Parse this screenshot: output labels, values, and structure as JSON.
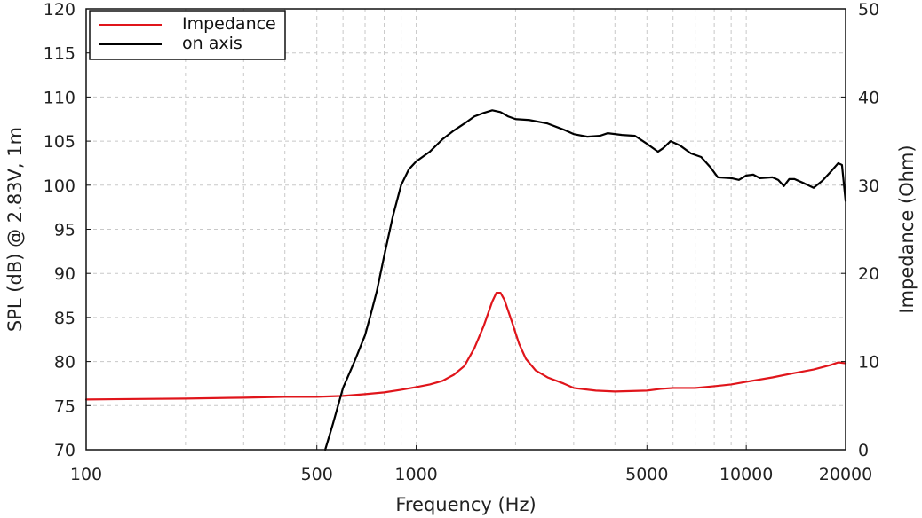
{
  "chart_data": {
    "type": "line",
    "xlabel": "Frequency (Hz)",
    "ylabel": "SPL (dB) @ 2.83V, 1m",
    "y2label": "Impedance (Ohm)",
    "x_scale": "log",
    "xlim": [
      100,
      20000
    ],
    "ylim": [
      70,
      120
    ],
    "y2lim": [
      0,
      50
    ],
    "grid": true,
    "legend_position": "top-left",
    "x_ticks": [
      100,
      500,
      1000,
      5000,
      10000,
      20000
    ],
    "x_tick_labels": [
      "100",
      "500",
      "1000",
      "5000",
      "10000",
      "20000"
    ],
    "x_minor_gridlines": [
      200,
      300,
      400,
      600,
      700,
      800,
      900,
      2000,
      3000,
      4000,
      6000,
      7000,
      8000,
      9000
    ],
    "y_ticks": [
      70,
      75,
      80,
      85,
      90,
      95,
      100,
      105,
      110,
      115,
      120
    ],
    "y_tick_labels": [
      "70",
      "75",
      "80",
      "85",
      "90",
      "95",
      "100",
      "105",
      "110",
      "115",
      "120"
    ],
    "y2_ticks": [
      0,
      10,
      20,
      30,
      40,
      50
    ],
    "y2_tick_labels": [
      "0",
      "10",
      "20",
      "30",
      "40",
      "50"
    ],
    "series": [
      {
        "name": "Impedance",
        "axis": "right",
        "color": "#e0151b",
        "points": [
          [
            100,
            5.7
          ],
          [
            200,
            5.8
          ],
          [
            300,
            5.9
          ],
          [
            400,
            6.0
          ],
          [
            500,
            6.0
          ],
          [
            600,
            6.1
          ],
          [
            700,
            6.3
          ],
          [
            800,
            6.5
          ],
          [
            900,
            6.8
          ],
          [
            1000,
            7.1
          ],
          [
            1100,
            7.4
          ],
          [
            1200,
            7.8
          ],
          [
            1300,
            8.5
          ],
          [
            1400,
            9.5
          ],
          [
            1500,
            11.5
          ],
          [
            1600,
            14.0
          ],
          [
            1700,
            16.8
          ],
          [
            1750,
            17.8
          ],
          [
            1800,
            17.8
          ],
          [
            1850,
            17.0
          ],
          [
            1950,
            14.5
          ],
          [
            2050,
            12.0
          ],
          [
            2150,
            10.3
          ],
          [
            2300,
            9.0
          ],
          [
            2500,
            8.2
          ],
          [
            2800,
            7.5
          ],
          [
            3000,
            7.0
          ],
          [
            3500,
            6.7
          ],
          [
            4000,
            6.6
          ],
          [
            5000,
            6.7
          ],
          [
            5500,
            6.9
          ],
          [
            6000,
            7.0
          ],
          [
            7000,
            7.0
          ],
          [
            8000,
            7.2
          ],
          [
            9000,
            7.4
          ],
          [
            10000,
            7.7
          ],
          [
            12000,
            8.2
          ],
          [
            14000,
            8.7
          ],
          [
            16000,
            9.1
          ],
          [
            18000,
            9.6
          ],
          [
            19000,
            9.9
          ],
          [
            20000,
            9.8
          ]
        ]
      },
      {
        "name": "on axis",
        "axis": "left",
        "color": "#000000",
        "points": [
          [
            530,
            70.0
          ],
          [
            560,
            73.0
          ],
          [
            600,
            77.0
          ],
          [
            650,
            80.0
          ],
          [
            700,
            83.0
          ],
          [
            730,
            85.5
          ],
          [
            760,
            88.0
          ],
          [
            800,
            92.0
          ],
          [
            850,
            96.5
          ],
          [
            900,
            100.0
          ],
          [
            950,
            101.8
          ],
          [
            1000,
            102.7
          ],
          [
            1100,
            103.8
          ],
          [
            1200,
            105.2
          ],
          [
            1300,
            106.2
          ],
          [
            1400,
            107.0
          ],
          [
            1500,
            107.8
          ],
          [
            1600,
            108.2
          ],
          [
            1700,
            108.5
          ],
          [
            1800,
            108.3
          ],
          [
            1900,
            107.8
          ],
          [
            2000,
            107.5
          ],
          [
            2200,
            107.4
          ],
          [
            2500,
            107.0
          ],
          [
            2800,
            106.3
          ],
          [
            3000,
            105.8
          ],
          [
            3300,
            105.5
          ],
          [
            3600,
            105.6
          ],
          [
            3800,
            105.9
          ],
          [
            4200,
            105.7
          ],
          [
            4600,
            105.6
          ],
          [
            5000,
            104.7
          ],
          [
            5400,
            103.8
          ],
          [
            5600,
            104.2
          ],
          [
            5900,
            105.0
          ],
          [
            6300,
            104.5
          ],
          [
            6800,
            103.6
          ],
          [
            7300,
            103.2
          ],
          [
            7800,
            102.0
          ],
          [
            8200,
            100.9
          ],
          [
            9000,
            100.8
          ],
          [
            9500,
            100.6
          ],
          [
            10000,
            101.1
          ],
          [
            10500,
            101.2
          ],
          [
            11000,
            100.8
          ],
          [
            12000,
            100.9
          ],
          [
            12500,
            100.6
          ],
          [
            13000,
            99.9
          ],
          [
            13500,
            100.7
          ],
          [
            14000,
            100.7
          ],
          [
            15000,
            100.2
          ],
          [
            16000,
            99.7
          ],
          [
            17000,
            100.5
          ],
          [
            18000,
            101.5
          ],
          [
            19000,
            102.5
          ],
          [
            19500,
            102.3
          ],
          [
            20000,
            98.2
          ]
        ]
      }
    ]
  }
}
